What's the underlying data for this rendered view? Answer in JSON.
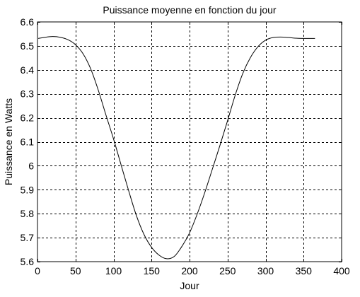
{
  "chart_data": {
    "type": "line",
    "title": "Puissance moyenne en fonction du jour",
    "xlabel": "Jour",
    "ylabel": "Puissance en Watts",
    "xlim": [
      0,
      400
    ],
    "ylim": [
      5.6,
      6.6
    ],
    "xticks": [
      0,
      50,
      100,
      150,
      200,
      250,
      300,
      350,
      400
    ],
    "xtick_labels": [
      "0",
      "50",
      "100",
      "150",
      "200",
      "250",
      "300",
      "350",
      "400"
    ],
    "yticks": [
      5.6,
      5.7,
      5.8,
      5.9,
      6.0,
      6.1,
      6.2,
      6.3,
      6.4,
      6.5,
      6.6
    ],
    "ytick_labels": [
      "5.6",
      "5.7",
      "5.8",
      "5.9",
      "6",
      "6.1",
      "6.2",
      "6.3",
      "6.4",
      "6.5",
      "6.6"
    ],
    "grid": true,
    "grid_style": "dashed",
    "series": [
      {
        "color": "#000000",
        "x": [
          1,
          10,
          20,
          30,
          40,
          50,
          60,
          70,
          80,
          90,
          100,
          110,
          120,
          130,
          140,
          150,
          160,
          170,
          180,
          190,
          200,
          210,
          220,
          230,
          240,
          250,
          260,
          270,
          280,
          290,
          300,
          310,
          320,
          330,
          340,
          350,
          360,
          365
        ],
        "y": [
          6.531,
          6.536,
          6.539,
          6.536,
          6.526,
          6.505,
          6.467,
          6.404,
          6.315,
          6.212,
          6.112,
          6.003,
          5.895,
          5.793,
          5.714,
          5.66,
          5.627,
          5.612,
          5.622,
          5.664,
          5.72,
          5.798,
          5.888,
          5.986,
          6.085,
          6.188,
          6.294,
          6.385,
          6.451,
          6.497,
          6.524,
          6.535,
          6.537,
          6.535,
          6.532,
          6.531,
          6.531,
          6.531
        ]
      }
    ]
  }
}
